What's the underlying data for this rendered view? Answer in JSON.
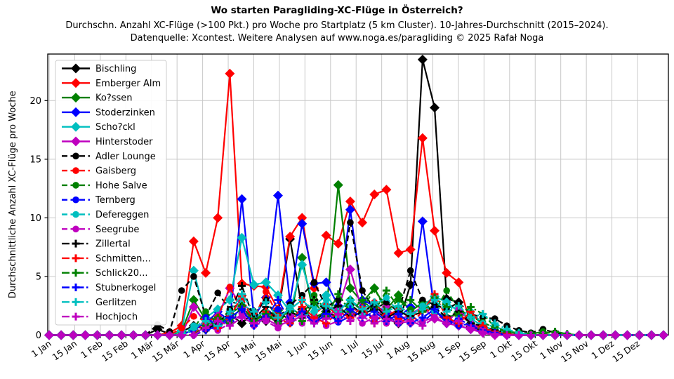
{
  "chart_data": {
    "type": "line",
    "title": "Wo starten Paragliding-XC-Flüge in Österreich?",
    "subtitle1": "Durchschn. Anzahl XC-Flüge (>100 Pkt.) pro Woche pro Startplatz (5 km Cluster). 10-Jahres-Durchschnitt (2015–2024).",
    "subtitle2": "Datenquelle: Xcontest. Weitere Analysen auf www.noga.es/paragliding © 2025 Rafał Noga",
    "ylabel": "Durchschnittliche Anzahl XC-Flüge pro Woche",
    "ylim": [
      0,
      23.9
    ],
    "yticks": [
      0,
      5,
      10,
      15,
      20
    ],
    "xtick_labels": [
      "1 Jan",
      "15 Jan",
      "1 Feb",
      "15 Feb",
      "1 Mär",
      "15 Mär",
      "1 Apr",
      "15 Apr",
      "1 Mai",
      "15 Mai",
      "1 Jun",
      "15 Jun",
      "1 Jul",
      "15 Jul",
      "1 Aug",
      "15 Aug",
      "1 Sep",
      "15 Sep",
      "1 Okt",
      "15 Okt",
      "1 Nov",
      "15 Nov",
      "1 Dez",
      "15 Dez"
    ],
    "x_unit": "week_of_year",
    "weeks": 52,
    "grid": true,
    "legend_position": "upper-left",
    "style": {
      "grid_color": "#c8c8c8",
      "spine_color": "#000000",
      "legend_edge": "#cccccc",
      "background": "#ffffff"
    },
    "series": [
      {
        "name": "Bischling",
        "color": "#000000",
        "line_style": "solid",
        "marker": "diamond",
        "values": [
          0,
          0,
          0,
          0,
          0,
          0,
          0,
          0,
          0,
          0.5,
          0.1,
          0.3,
          0.8,
          0.5,
          1.2,
          1.8,
          1.0,
          2.0,
          1.2,
          1.8,
          8.2,
          2.2,
          1.2,
          2.0,
          1.5,
          2.6,
          1.8,
          2.2,
          1.4,
          1.0,
          4.3,
          23.5,
          19.4,
          3.1,
          2.8,
          0.7,
          0.4,
          0.2,
          0.1,
          0,
          0,
          0,
          0,
          0,
          0,
          0,
          0,
          0,
          0,
          0,
          0,
          0
        ]
      },
      {
        "name": "Emberger Alm",
        "color": "#ff0000",
        "line_style": "solid",
        "marker": "diamond",
        "values": [
          0,
          0,
          0,
          0,
          0,
          0,
          0,
          0,
          0,
          0,
          0.2,
          0.8,
          8.0,
          5.3,
          10.0,
          22.3,
          4.4,
          4.2,
          4.1,
          2.2,
          8.4,
          10.0,
          4.0,
          8.5,
          7.8,
          11.4,
          9.6,
          12.0,
          12.4,
          7.0,
          7.3,
          16.8,
          8.9,
          5.3,
          4.5,
          0.9,
          0.4,
          0.2,
          0,
          0,
          0,
          0,
          0,
          0,
          0,
          0,
          0,
          0,
          0,
          0,
          0,
          0
        ]
      },
      {
        "name": "Ko?ssen",
        "color": "#008000",
        "line_style": "solid",
        "marker": "diamond",
        "values": [
          0,
          0,
          0,
          0,
          0,
          0,
          0,
          0,
          0,
          0,
          0,
          0.3,
          3.0,
          1.3,
          0.8,
          1.8,
          2.5,
          1.0,
          1.6,
          2.1,
          1.2,
          6.6,
          1.5,
          2.0,
          12.8,
          4.0,
          2.8,
          4.0,
          2.2,
          3.4,
          2.0,
          2.8,
          2.0,
          1.5,
          1.8,
          1.0,
          0.6,
          0.3,
          0.1,
          0,
          0,
          0,
          0,
          0,
          0,
          0,
          0,
          0,
          0,
          0,
          0,
          0
        ]
      },
      {
        "name": "Stoderzinken",
        "color": "#0000ff",
        "line_style": "solid",
        "marker": "diamond",
        "values": [
          0,
          0,
          0,
          0,
          0,
          0,
          0,
          0,
          0,
          0,
          0,
          0,
          0.5,
          1.0,
          2.0,
          1.2,
          11.6,
          1.5,
          3.2,
          11.9,
          2.8,
          9.5,
          4.4,
          4.5,
          2.5,
          10.7,
          3.0,
          2.5,
          2.0,
          1.5,
          2.4,
          9.7,
          2.0,
          1.4,
          0.8,
          0.5,
          0.3,
          0.1,
          0,
          0,
          0,
          0,
          0,
          0,
          0,
          0,
          0,
          0,
          0,
          0,
          0,
          0
        ]
      },
      {
        "name": "Scho?ckl",
        "color": "#00bfbf",
        "line_style": "solid",
        "marker": "diamond",
        "values": [
          0,
          0,
          0,
          0,
          0,
          0,
          0,
          0,
          0,
          0,
          0,
          0.4,
          5.5,
          1.5,
          2.2,
          3.0,
          8.3,
          4.3,
          4.5,
          3.4,
          2.0,
          6.0,
          2.5,
          3.4,
          2.0,
          3.0,
          2.0,
          2.6,
          1.6,
          2.2,
          1.5,
          2.5,
          3.3,
          2.8,
          2.0,
          1.4,
          0.8,
          0.4,
          0.2,
          0,
          0,
          0,
          0,
          0,
          0,
          0,
          0,
          0,
          0,
          0,
          0,
          0
        ]
      },
      {
        "name": "Hinterstoder",
        "color": "#bf00bf",
        "line_style": "solid",
        "marker": "diamond",
        "values": [
          0,
          0,
          0,
          0,
          0,
          0,
          0,
          0,
          0,
          0,
          0,
          0,
          2.4,
          1.0,
          1.6,
          4.0,
          2.4,
          1.2,
          1.8,
          1.0,
          1.6,
          2.0,
          1.2,
          1.6,
          2.2,
          5.6,
          2.0,
          1.5,
          2.4,
          1.2,
          1.8,
          2.4,
          1.4,
          1.0,
          0.8,
          0.5,
          0.2,
          0,
          0,
          0,
          0,
          0,
          0,
          0,
          0,
          0,
          0,
          0,
          0,
          0,
          0,
          0
        ]
      },
      {
        "name": "Adler Lounge",
        "color": "#000000",
        "line_style": "dashed",
        "marker": "circle",
        "values": [
          0,
          0,
          0,
          0,
          0,
          0,
          0,
          0,
          0,
          0.9,
          0.3,
          3.8,
          5.0,
          1.6,
          3.6,
          2.2,
          2.8,
          1.8,
          3.0,
          1.4,
          2.6,
          3.4,
          4.5,
          2.4,
          3.0,
          9.6,
          3.8,
          2.2,
          2.8,
          2.0,
          5.5,
          3.0,
          2.6,
          2.2,
          2.8,
          1.8,
          1.5,
          1.4,
          0.8,
          0.4,
          0.2,
          0.5,
          0.2,
          0,
          0,
          0,
          0,
          0,
          0,
          0,
          0,
          0
        ]
      },
      {
        "name": "Gaisberg",
        "color": "#ff0000",
        "line_style": "dashed",
        "marker": "circle",
        "values": [
          0,
          0,
          0,
          0,
          0,
          0,
          0,
          0,
          0,
          0,
          0,
          0.6,
          1.6,
          1.2,
          1.5,
          4.1,
          2.0,
          1.4,
          3.7,
          1.6,
          2.2,
          3.0,
          1.8,
          2.6,
          1.6,
          2.4,
          1.8,
          2.8,
          1.6,
          2.2,
          1.4,
          2.4,
          1.8,
          1.2,
          1.8,
          1.0,
          0.6,
          0.3,
          0.1,
          0,
          0,
          0,
          0,
          0,
          0,
          0,
          0,
          0,
          0,
          0,
          0,
          0
        ]
      },
      {
        "name": "Hohe Salve",
        "color": "#008000",
        "line_style": "dashed",
        "marker": "circle",
        "values": [
          0,
          0,
          0,
          0,
          0,
          0,
          0,
          0,
          0,
          0,
          0,
          0,
          0.6,
          2.0,
          1.0,
          1.6,
          3.0,
          1.2,
          2.0,
          1.1,
          2.4,
          1.6,
          3.4,
          2.0,
          1.6,
          3.0,
          2.1,
          4.0,
          2.0,
          3.0,
          2.2,
          2.6,
          2.0,
          3.8,
          2.2,
          1.6,
          1.1,
          0.6,
          0.3,
          0.2,
          0.1,
          0.3,
          0.1,
          0,
          0,
          0,
          0,
          0,
          0,
          0,
          0,
          0
        ]
      },
      {
        "name": "Ternberg",
        "color": "#0000ff",
        "line_style": "dashed",
        "marker": "circle",
        "values": [
          0,
          0,
          0,
          0,
          0,
          0,
          0,
          0,
          0,
          0,
          0,
          0,
          0.4,
          1.5,
          0.8,
          1.2,
          2.0,
          1.0,
          1.6,
          2.2,
          1.0,
          1.8,
          1.2,
          2.0,
          1.1,
          1.6,
          2.4,
          1.2,
          1.8,
          1.0,
          1.6,
          1.1,
          2.0,
          1.2,
          0.8,
          1.0,
          0.5,
          0.2,
          0,
          0,
          0,
          0,
          0,
          0,
          0,
          0,
          0,
          0,
          0,
          0,
          0,
          0
        ]
      },
      {
        "name": "Defereggen",
        "color": "#00bfbf",
        "line_style": "dashed",
        "marker": "circle",
        "values": [
          0,
          0,
          0,
          0,
          0,
          0,
          0,
          0,
          0,
          0,
          0,
          0,
          0.8,
          1.0,
          0.5,
          1.6,
          3.0,
          1.5,
          2.0,
          1.2,
          2.4,
          1.6,
          2.0,
          3.0,
          1.6,
          2.4,
          1.8,
          2.6,
          3.2,
          2.0,
          1.6,
          2.5,
          2.0,
          2.8,
          1.6,
          2.0,
          1.0,
          0.7,
          0.4,
          0.1,
          0,
          0,
          0,
          0,
          0,
          0,
          0,
          0,
          0,
          0,
          0,
          0
        ]
      },
      {
        "name": "Seegrube",
        "color": "#bf00bf",
        "line_style": "dashed",
        "marker": "circle",
        "values": [
          0,
          0,
          0,
          0,
          0,
          0,
          0,
          0,
          0,
          0,
          0,
          0,
          0,
          0.8,
          0.4,
          1.0,
          1.8,
          0.8,
          1.2,
          0.6,
          1.5,
          1.0,
          1.5,
          0.8,
          1.2,
          2.0,
          1.0,
          1.5,
          1.0,
          1.8,
          1.0,
          1.2,
          1.5,
          1.0,
          2.2,
          1.0,
          0.5,
          0.2,
          0,
          0,
          0,
          0,
          0,
          0,
          0,
          0,
          0,
          0,
          0,
          0,
          0,
          0
        ]
      },
      {
        "name": "Zillertal",
        "color": "#000000",
        "line_style": "dashdot",
        "marker": "plus",
        "values": [
          0,
          0,
          0,
          0,
          0,
          0,
          0,
          0,
          0,
          0,
          0,
          0,
          0,
          0.5,
          1.0,
          2.0,
          4.2,
          1.4,
          2.4,
          1.2,
          2.0,
          1.5,
          3.0,
          2.0,
          2.5,
          1.5,
          2.0,
          2.6,
          1.5,
          2.0,
          1.6,
          2.0,
          2.4,
          1.5,
          2.0,
          1.0,
          0.8,
          0.4,
          0.2,
          0,
          0,
          0,
          0,
          0,
          0,
          0,
          0,
          0,
          0,
          0,
          0,
          0
        ]
      },
      {
        "name": "Schmitten...",
        "color": "#ff0000",
        "line_style": "dashdot",
        "marker": "plus",
        "values": [
          0,
          0,
          0,
          0,
          0,
          0,
          0,
          0,
          0,
          0,
          0,
          0,
          0,
          1.2,
          0.6,
          1.6,
          3.3,
          1.0,
          2.0,
          1.4,
          1.0,
          2.4,
          1.5,
          1.0,
          2.0,
          1.5,
          2.4,
          1.0,
          2.0,
          1.4,
          1.0,
          2.0,
          3.5,
          1.5,
          1.0,
          2.0,
          0.8,
          0.3,
          0.1,
          0,
          0,
          0,
          0,
          0,
          0,
          0,
          0,
          0,
          0,
          0,
          0,
          0
        ]
      },
      {
        "name": "Schlick20...",
        "color": "#008000",
        "line_style": "dashdot",
        "marker": "plus",
        "values": [
          0,
          0,
          0,
          0,
          0,
          0,
          0,
          0,
          0,
          0,
          0,
          0,
          0,
          0.8,
          1.5,
          1.0,
          2.5,
          1.2,
          1.8,
          1.0,
          2.2,
          1.2,
          2.8,
          1.6,
          3.5,
          2.0,
          3.0,
          2.0,
          3.8,
          2.4,
          3.0,
          2.0,
          3.2,
          2.4,
          1.7,
          2.4,
          1.8,
          0.7,
          0.3,
          0.2,
          0.1,
          0.1,
          0.3,
          0.1,
          0,
          0,
          0,
          0,
          0,
          0,
          0,
          0
        ]
      },
      {
        "name": "Stubnerkogel",
        "color": "#0000ff",
        "line_style": "dashdot",
        "marker": "plus",
        "values": [
          0,
          0,
          0,
          0,
          0,
          0,
          0,
          0,
          0,
          0,
          0,
          0,
          0,
          0.4,
          0.8,
          1.5,
          2.2,
          0.8,
          1.5,
          3.0,
          1.2,
          2.0,
          1.0,
          1.8,
          1.2,
          2.2,
          1.5,
          2.0,
          1.2,
          1.8,
          1.0,
          1.5,
          2.2,
          1.0,
          1.4,
          0.8,
          0.4,
          0.2,
          0,
          0,
          0,
          0,
          0,
          0,
          0,
          0,
          0,
          0,
          0,
          0,
          0,
          0
        ]
      },
      {
        "name": "Gerlitzen",
        "color": "#00bfbf",
        "line_style": "dashdot",
        "marker": "plus",
        "values": [
          0,
          0,
          0,
          0,
          0,
          0,
          0,
          0,
          0,
          0,
          0,
          0,
          0.5,
          1.2,
          0.8,
          2.0,
          3.5,
          2.0,
          2.8,
          1.5,
          2.2,
          3.0,
          2.0,
          2.5,
          2.0,
          3.0,
          2.2,
          2.8,
          2.0,
          2.5,
          1.8,
          2.2,
          3.0,
          2.0,
          2.5,
          1.5,
          1.8,
          1.0,
          0.5,
          0.2,
          0,
          0,
          0,
          0,
          0,
          0,
          0,
          0,
          0,
          0,
          0,
          0
        ]
      },
      {
        "name": "Hochjoch",
        "color": "#bf00bf",
        "line_style": "dashdot",
        "marker": "plus",
        "values": [
          0,
          0,
          0,
          0,
          0,
          0,
          0,
          0,
          0,
          0,
          0,
          0,
          0,
          0.6,
          1.2,
          0.8,
          1.5,
          1.0,
          1.4,
          0.8,
          1.2,
          1.6,
          1.0,
          1.4,
          1.8,
          1.2,
          1.6,
          1.0,
          1.4,
          1.0,
          1.2,
          0.8,
          1.5,
          1.0,
          1.2,
          0.6,
          0.3,
          0.1,
          0,
          0,
          0,
          0,
          0,
          0,
          0,
          0,
          0,
          0,
          0,
          0,
          0,
          0
        ]
      }
    ]
  }
}
